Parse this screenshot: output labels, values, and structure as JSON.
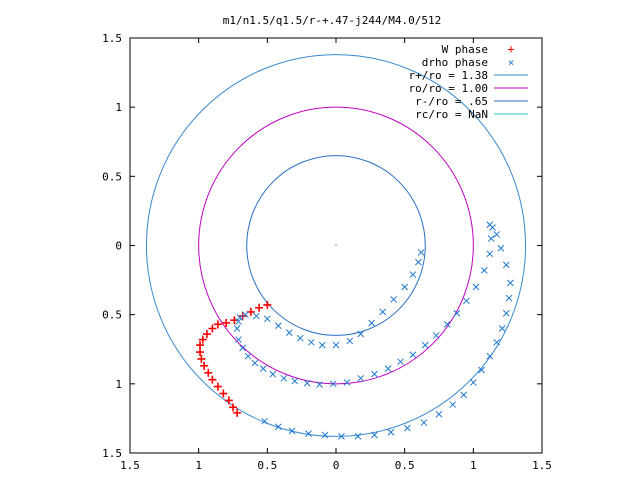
{
  "chart_data": {
    "type": "scatter",
    "title": "m1/n1.5/q1.5/r-+.47-j244/M4.0/512",
    "xlim": [
      -1.5,
      1.5
    ],
    "ylim": [
      -1.5,
      1.5
    ],
    "xticks": [
      "1.5",
      "1",
      "0.5",
      "0",
      "0.5",
      "1",
      "1.5"
    ],
    "yticks": [
      "1.5",
      "1",
      "0.5",
      "0",
      "0.5",
      "1",
      "1.5"
    ],
    "tick_values": [
      -1.5,
      -1,
      -0.5,
      0,
      0.5,
      1,
      1.5
    ],
    "grid": false,
    "legend_position": "top-right",
    "circles": [
      {
        "label": "r+/ro = 1.38",
        "radius": 1.38,
        "color": "#3a8ad0"
      },
      {
        "label": "ro/ro = 1.00",
        "radius": 1.0,
        "color": "#c000c0"
      },
      {
        "label": "r-/ro = .65",
        "radius": 0.65,
        "color": "#2a6fc0"
      },
      {
        "label": "rc/ro = NaN",
        "radius": null,
        "color": "#20c0d0"
      }
    ],
    "series": [
      {
        "name": "W phase",
        "marker": "+",
        "color": "#ff0000",
        "points": [
          [
            -0.5,
            -0.43
          ],
          [
            -0.56,
            -0.45
          ],
          [
            -0.62,
            -0.48
          ],
          [
            -0.68,
            -0.51
          ],
          [
            -0.74,
            -0.54
          ],
          [
            -0.8,
            -0.56
          ],
          [
            -0.86,
            -0.57
          ],
          [
            -0.9,
            -0.6
          ],
          [
            -0.94,
            -0.64
          ],
          [
            -0.97,
            -0.68
          ],
          [
            -0.99,
            -0.72
          ],
          [
            -0.99,
            -0.77
          ],
          [
            -0.98,
            -0.82
          ],
          [
            -0.96,
            -0.87
          ],
          [
            -0.93,
            -0.92
          ],
          [
            -0.9,
            -0.97
          ],
          [
            -0.86,
            -1.02
          ],
          [
            -0.82,
            -1.07
          ],
          [
            -0.78,
            -1.12
          ],
          [
            -0.75,
            -1.17
          ],
          [
            -0.72,
            -1.21
          ]
        ]
      },
      {
        "name": "drho phase",
        "marker": "x",
        "color": "#1f78d0",
        "points": [
          [
            -0.7,
            -0.52
          ],
          [
            -0.72,
            -0.6
          ],
          [
            -0.71,
            -0.68
          ],
          [
            -0.68,
            -0.74
          ],
          [
            -0.64,
            -0.8
          ],
          [
            -0.59,
            -0.85
          ],
          [
            -0.53,
            -0.89
          ],
          [
            -0.46,
            -0.93
          ],
          [
            -0.38,
            -0.96
          ],
          [
            -0.3,
            -0.98
          ],
          [
            -0.21,
            -0.995
          ],
          [
            -0.12,
            -1.005
          ],
          [
            -0.02,
            -1.0
          ],
          [
            0.08,
            -0.99
          ],
          [
            0.18,
            -0.96
          ],
          [
            0.28,
            -0.93
          ],
          [
            0.38,
            -0.89
          ],
          [
            0.47,
            -0.84
          ],
          [
            0.56,
            -0.79
          ],
          [
            0.65,
            -0.72
          ],
          [
            0.73,
            -0.65
          ],
          [
            0.81,
            -0.57
          ],
          [
            0.88,
            -0.49
          ],
          [
            0.95,
            -0.4
          ],
          [
            1.02,
            -0.3
          ],
          [
            1.08,
            -0.18
          ],
          [
            1.12,
            -0.06
          ],
          [
            1.13,
            0.05
          ],
          [
            1.12,
            0.15
          ],
          [
            1.14,
            0.13
          ],
          [
            1.17,
            0.08
          ],
          [
            1.2,
            -0.02
          ],
          [
            1.24,
            -0.14
          ],
          [
            1.27,
            -0.27
          ],
          [
            1.26,
            -0.38
          ],
          [
            1.24,
            -0.49
          ],
          [
            1.21,
            -0.6
          ],
          [
            1.17,
            -0.7
          ],
          [
            1.12,
            -0.8
          ],
          [
            1.06,
            -0.9
          ],
          [
            1.0,
            -0.99
          ],
          [
            0.93,
            -1.08
          ],
          [
            0.85,
            -1.15
          ],
          [
            0.75,
            -1.22
          ],
          [
            0.64,
            -1.28
          ],
          [
            0.52,
            -1.32
          ],
          [
            0.4,
            -1.35
          ],
          [
            0.28,
            -1.37
          ],
          [
            0.16,
            -1.38
          ],
          [
            0.04,
            -1.38
          ],
          [
            -0.08,
            -1.37
          ],
          [
            -0.2,
            -1.36
          ],
          [
            -0.32,
            -1.34
          ],
          [
            -0.42,
            -1.31
          ],
          [
            -0.52,
            -1.27
          ],
          [
            -0.71,
            -0.55
          ],
          [
            -0.66,
            -0.5
          ],
          [
            -0.58,
            -0.51
          ],
          [
            -0.5,
            -0.53
          ],
          [
            -0.42,
            -0.58
          ],
          [
            -0.34,
            -0.63
          ],
          [
            -0.26,
            -0.67
          ],
          [
            -0.18,
            -0.7
          ],
          [
            -0.1,
            -0.72
          ],
          [
            0.0,
            -0.72
          ],
          [
            0.1,
            -0.69
          ],
          [
            0.18,
            -0.64
          ],
          [
            0.26,
            -0.56
          ],
          [
            0.34,
            -0.48
          ],
          [
            0.42,
            -0.39
          ],
          [
            0.5,
            -0.3
          ],
          [
            0.56,
            -0.21
          ],
          [
            0.6,
            -0.12
          ],
          [
            0.62,
            -0.05
          ]
        ]
      }
    ]
  },
  "legend": {
    "w_phase": "W phase",
    "drho_phase": "drho phase",
    "r_plus": "r+/ro = 1.38",
    "r_zero": "ro/ro = 1.00",
    "r_minus": "r-/ro = .65",
    "r_c": "rc/ro = NaN"
  }
}
